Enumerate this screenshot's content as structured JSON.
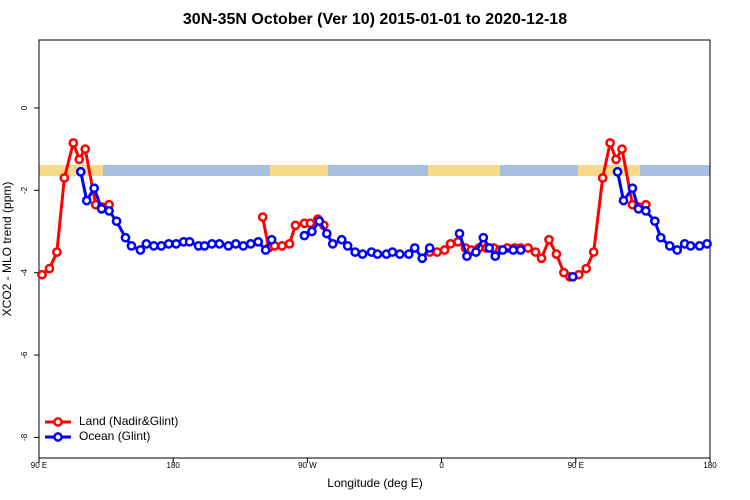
{
  "chart_data": {
    "type": "line",
    "title": "30N-35N October (Ver 10)   2015-01-01 to 2020-12-18",
    "xlabel": "Longitude (deg E)",
    "ylabel": "XCO2 - MLO trend (ppm)",
    "xlim": [
      90,
      540
    ],
    "ylim": [
      -8.5,
      1.65
    ],
    "xticks": [
      {
        "value": 90,
        "label": "90 E"
      },
      180,
      {
        "value": 270,
        "label": "90 W"
      },
      {
        "value": 360,
        "label": "0"
      },
      {
        "value": 450,
        "label": "90 E"
      },
      {
        "value": 540,
        "label": "180"
      }
    ],
    "yticks": [
      0,
      -2,
      -4,
      -6,
      -8
    ],
    "legend": "bottom-left",
    "series": [
      {
        "name": "Land (Nadir&Glint)",
        "color": "#ff0000",
        "x": [
          92,
          97,
          102,
          107,
          113,
          117,
          121,
          128,
          132,
          137,
          200,
          240,
          244,
          248,
          253,
          258,
          262,
          268,
          272,
          277,
          281,
          340,
          352,
          357,
          362,
          366,
          371,
          376,
          380,
          385,
          390,
          395,
          399,
          404,
          409,
          413,
          418,
          423,
          427,
          432,
          437,
          442,
          446,
          452,
          457,
          462,
          468,
          473,
          477,
          481,
          488,
          492,
          497
        ],
        "values": [
          -4.05,
          -3.9,
          -3.5,
          -1.7,
          -0.85,
          -1.25,
          -1.0,
          -2.35,
          -2.4,
          -2.35,
          null,
          -2.65,
          -3.4,
          -3.35,
          -3.35,
          -3.3,
          -2.85,
          -2.8,
          -2.8,
          -2.7,
          -2.85,
          null,
          -3.5,
          -3.5,
          -3.45,
          -3.3,
          -3.25,
          -3.4,
          -3.45,
          -3.4,
          -3.4,
          -3.4,
          -3.45,
          -3.4,
          -3.4,
          -3.4,
          -3.4,
          -3.5,
          -3.65,
          -3.2,
          -3.55,
          -4.0,
          -4.1,
          -4.05,
          -3.9,
          -3.5,
          -1.7,
          -0.85,
          -1.25,
          -1.0,
          -2.35,
          -2.4,
          -2.35
        ]
      },
      {
        "name": "Ocean (Glint)",
        "color": "#0000ff",
        "x": [
          118,
          122,
          127,
          132,
          137,
          142,
          148,
          152,
          158,
          162,
          167,
          172,
          177,
          182,
          187,
          191,
          197,
          201,
          206,
          211,
          217,
          222,
          227,
          232,
          237,
          242,
          246,
          260,
          268,
          273,
          278,
          283,
          287,
          293,
          297,
          302,
          307,
          313,
          317,
          323,
          327,
          332,
          338,
          342,
          347,
          352,
          355,
          372,
          377,
          383,
          388,
          392,
          396,
          401,
          408,
          413,
          430,
          448,
          500,
          478,
          482,
          488,
          492,
          497,
          503,
          507,
          513,
          518,
          523,
          527,
          533,
          538
        ],
        "values": [
          -1.55,
          -2.25,
          -1.95,
          -2.45,
          -2.5,
          -2.75,
          -3.15,
          -3.35,
          -3.45,
          -3.3,
          -3.35,
          -3.35,
          -3.3,
          -3.3,
          -3.25,
          -3.25,
          -3.35,
          -3.35,
          -3.3,
          -3.3,
          -3.35,
          -3.3,
          -3.35,
          -3.3,
          -3.25,
          -3.45,
          -3.2,
          null,
          -3.1,
          -3.0,
          -2.75,
          -3.05,
          -3.3,
          -3.2,
          -3.35,
          -3.5,
          -3.55,
          -3.5,
          -3.55,
          -3.55,
          -3.5,
          -3.55,
          -3.55,
          -3.4,
          -3.65,
          -3.4,
          null,
          -3.05,
          -3.6,
          -3.5,
          -3.15,
          -3.4,
          -3.6,
          -3.45,
          -3.45,
          -3.45,
          null,
          -4.1,
          null,
          -1.55,
          -2.25,
          -1.95,
          -2.45,
          -2.5,
          -2.75,
          -3.15,
          -3.35,
          -3.45,
          -3.3,
          -3.35,
          -3.35,
          -3.3
        ]
      }
    ]
  }
}
